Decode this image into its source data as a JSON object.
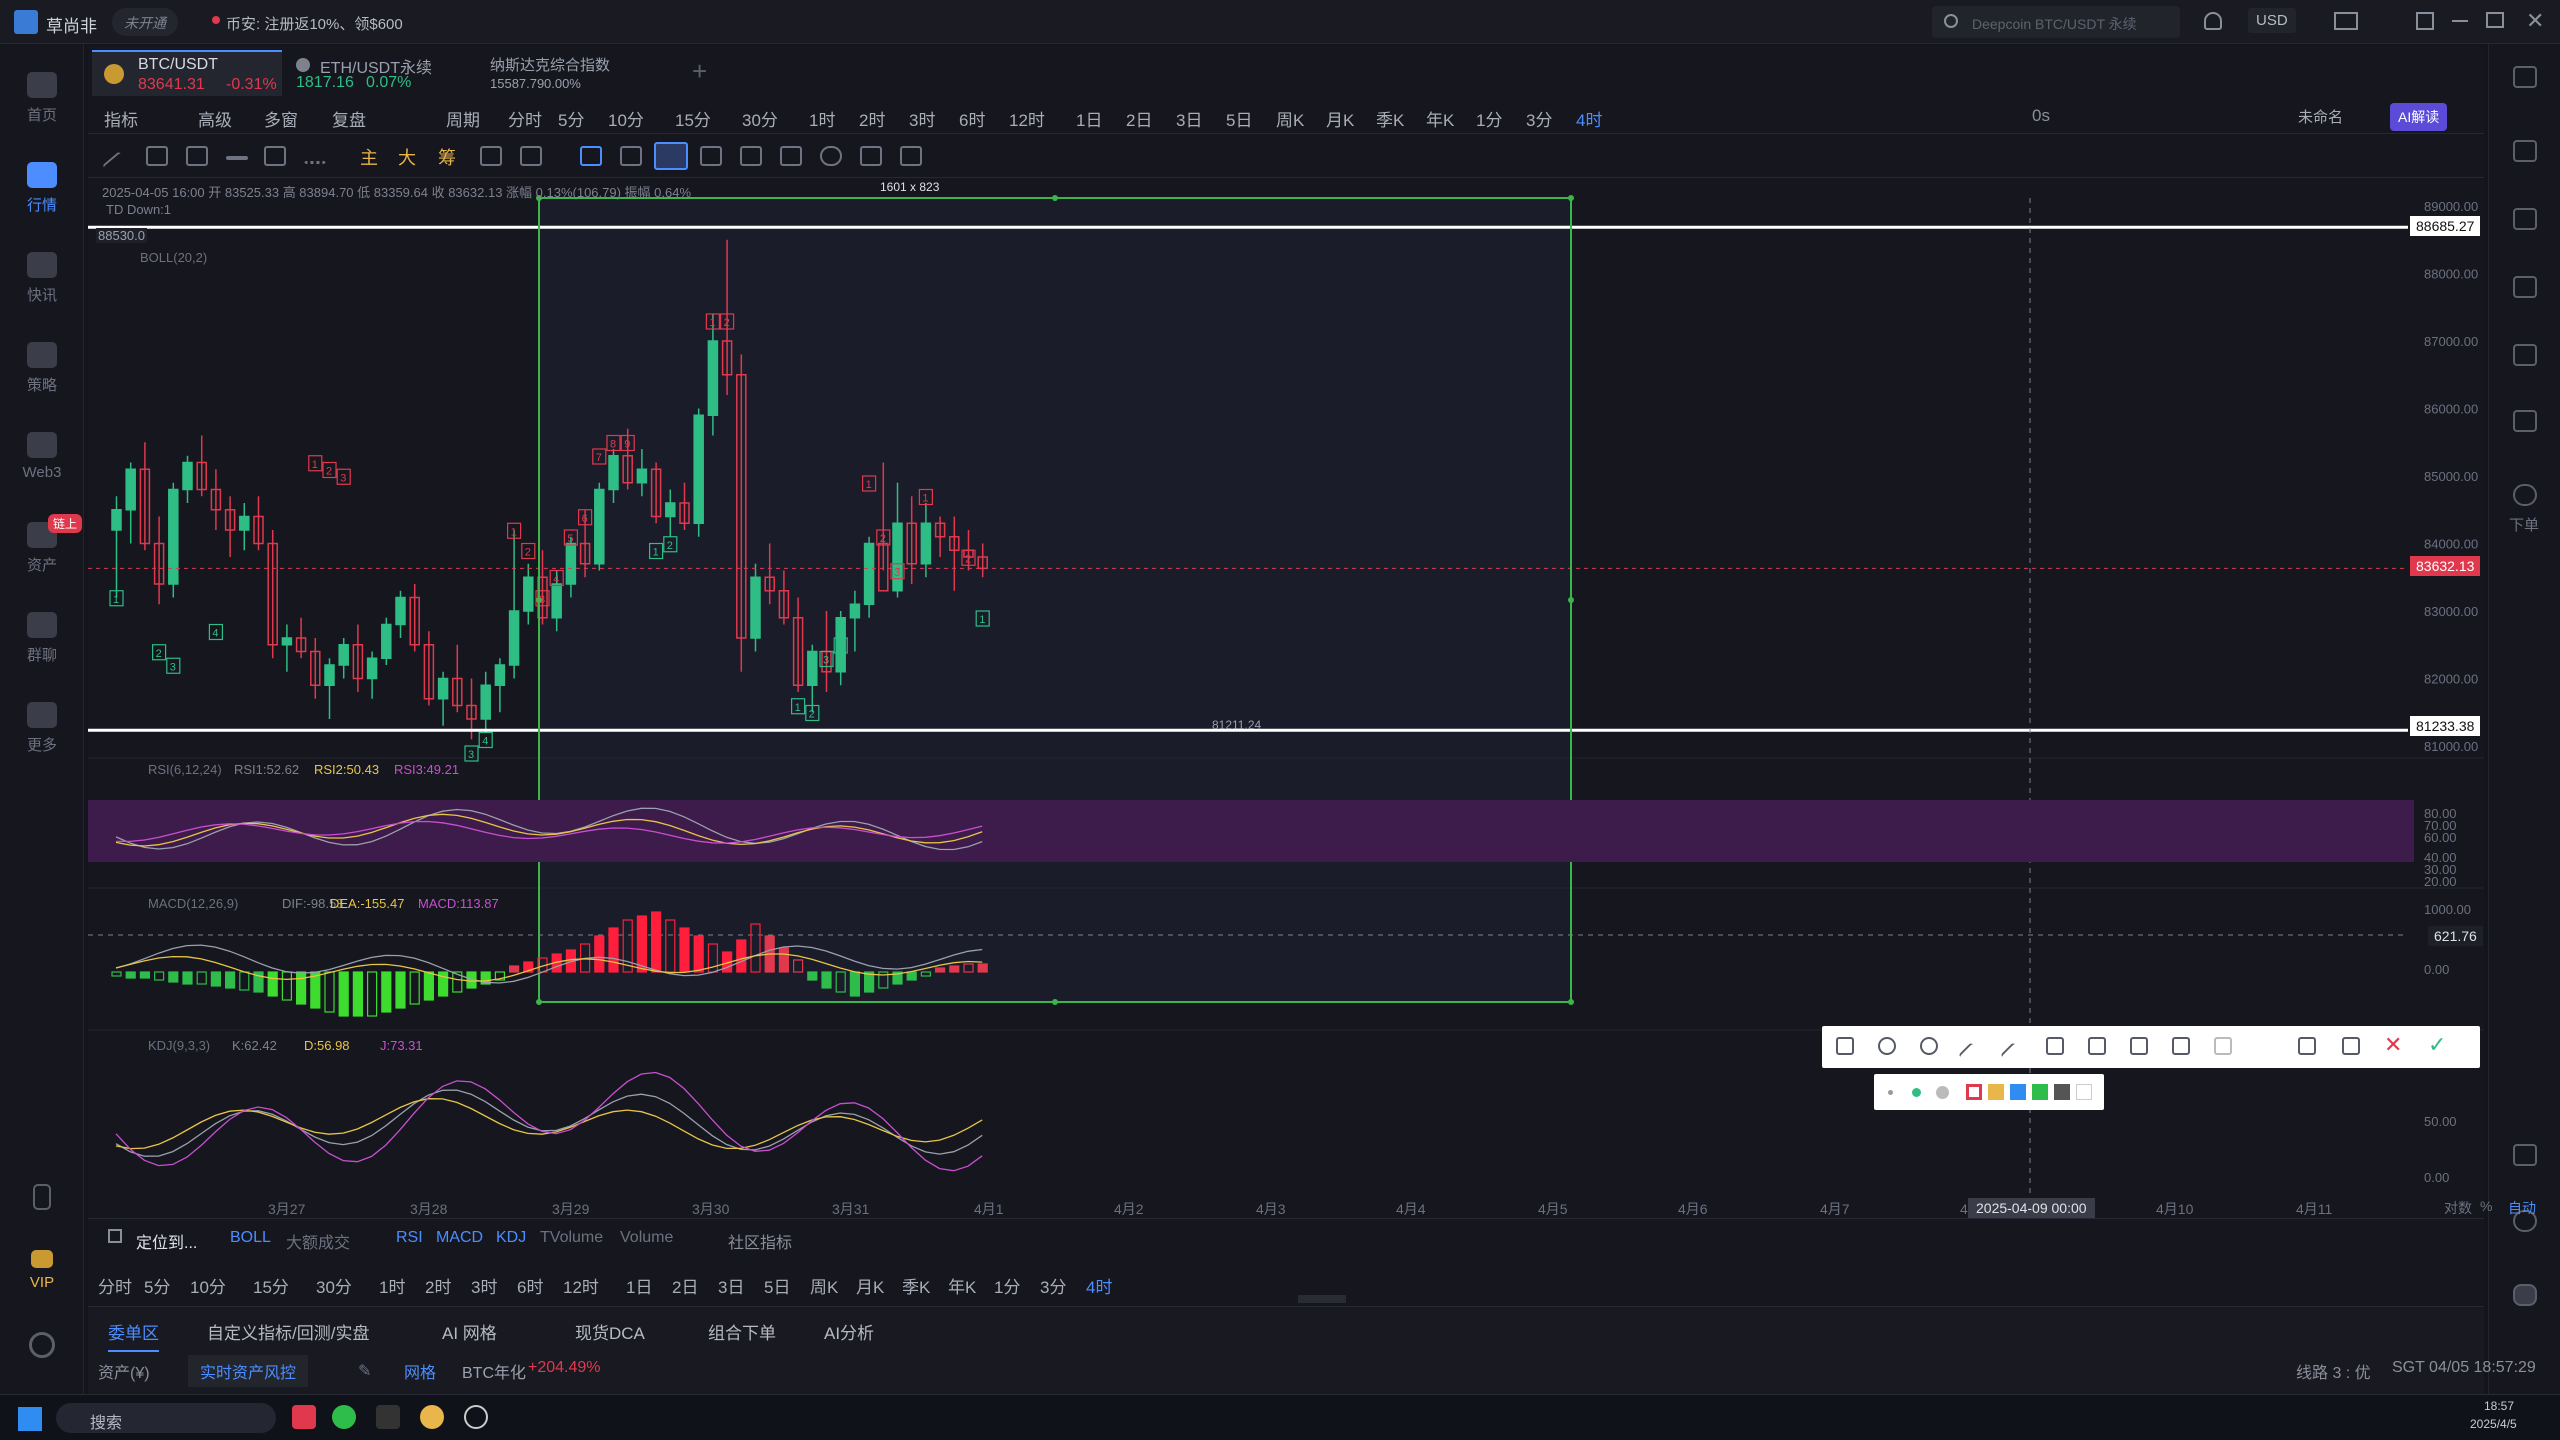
{
  "app": {
    "name": "草尚非",
    "status": "未开通",
    "notice": "币安: 注册返10%、领$600",
    "search_placeholder": "Deepcoin BTC/USDT 永续",
    "currency": "USD"
  },
  "sidebar": [
    {
      "label": "首页"
    },
    {
      "label": "行情"
    },
    {
      "label": "快讯"
    },
    {
      "label": "策略"
    },
    {
      "label": "Web3"
    },
    {
      "label": "资产",
      "badge": "链上"
    },
    {
      "label": "群聊"
    },
    {
      "label": "更多"
    },
    {
      "label": "VIP"
    }
  ],
  "right_sidebar": [
    {
      "label": "下单"
    }
  ],
  "pairs": [
    {
      "symbol": "BTC/USDT",
      "price": "83641.31",
      "change": "-0.31%",
      "color": "#e0394d",
      "active": true
    },
    {
      "symbol": "ETH/USDT永续",
      "price": "1817.16",
      "change": "0.07%",
      "color": "#2ebd85"
    },
    {
      "symbol": "纳斯达克综合指数",
      "price": "15587.79",
      "change": "0.00%",
      "color": "#9aa0ad"
    }
  ],
  "toolbar": {
    "indicators": "指标",
    "advanced": "高级",
    "multi": "多窗",
    "restore": "复盘",
    "period": "周期",
    "timeframes": [
      "分时",
      "5分",
      "10分",
      "15分",
      "30分",
      "1时",
      "2时",
      "3时",
      "6时",
      "12时",
      "1日",
      "2日",
      "3日",
      "5日",
      "周K",
      "月K",
      "季K",
      "年K",
      "1分",
      "3分",
      "4时"
    ],
    "active_tf": "4时",
    "right_items": [
      "0s",
      "未命名",
      "AI解读"
    ],
    "drawing_tools": [
      "主",
      "大",
      "筹"
    ]
  },
  "chart": {
    "info_line": "2025-04-05 16:00 开 83525.33 高 83894.70 低 83359.64 收 83632.13 涨幅 0.13%(106.79) 振幅 0.64%",
    "td_label": "TD  Down:1",
    "boll_label": "BOLL(20,2)",
    "left_label": "88530.0",
    "selection_size": "1601 x 823",
    "price_axis": [
      "89000.00",
      "88000.00",
      "87000.00",
      "86000.00",
      "85000.00",
      "84000.00",
      "83000.00",
      "82000.00",
      "81000.00"
    ],
    "top_line": "88685.27",
    "bottom_line": "81233.38",
    "current_price": "83632.13",
    "low_label": "81211.24",
    "crosshair_value": "621.76",
    "date_labels": [
      "3月27",
      "3月28",
      "3月29",
      "3月30",
      "3月31",
      "4月1",
      "4月2",
      "4月3",
      "4月4",
      "4月5",
      "4月6",
      "4月7",
      "4月8",
      "4月10",
      "4月11"
    ],
    "date_crosshair": "2025-04-09 00:00",
    "axis_buttons": [
      "对数",
      "%",
      "自动"
    ],
    "rsi": {
      "label": "RSI(6,12,24)",
      "v1": "RSI1:52.62",
      "v2": "RSI2:50.43",
      "v3": "RSI3:49.21",
      "axis": [
        "80.00",
        "70.00",
        "60.00",
        "40.00",
        "30.00",
        "20.00"
      ]
    },
    "macd": {
      "label": "MACD(12,26,9)",
      "dif": "DIF:-98.53",
      "dea": "DEA:-155.47",
      "macd": "MACD:113.87",
      "axis": [
        "1000.00",
        "0.00"
      ]
    },
    "kdj": {
      "label": "KDJ(9,3,3)",
      "k": "K:62.42",
      "d": "D:56.98",
      "j": "J:73.31",
      "axis": [
        "50.00",
        "0.00"
      ]
    }
  },
  "colors": {
    "up": "#2ebd85",
    "down": "#e0394d",
    "accent": "#4c8dff",
    "select": "#3cb54a"
  },
  "indicator_bar": {
    "locate": "定位到...",
    "main": [
      "BOLL",
      "大额成交"
    ],
    "sub": [
      "RSI",
      "MACD",
      "KDJ",
      "TVolume",
      "Volume"
    ],
    "community": "社区指标"
  },
  "bottom_timeframes": [
    "分时",
    "5分",
    "10分",
    "15分",
    "30分",
    "1时",
    "2时",
    "3时",
    "6时",
    "12时",
    "1日",
    "2日",
    "3日",
    "5日",
    "周K",
    "月K",
    "季K",
    "年K",
    "1分",
    "3分",
    "4时"
  ],
  "bottom_tabs": [
    "委单区",
    "自定义指标/回测/实盘",
    "AI 网格",
    "现货DCA",
    "组合下单",
    "AI分析"
  ],
  "status": {
    "asset": "资产(¥)",
    "risk": "实时资产风控",
    "grid": "网格",
    "annual": "BTC年化",
    "annual_value": "+204.49%",
    "line": "线路 3 : 优",
    "time": "SGT 04/05 18:57:29"
  },
  "taskbar": {
    "search": "搜索",
    "time": "18:57",
    "date": "2025/4/5"
  }
}
